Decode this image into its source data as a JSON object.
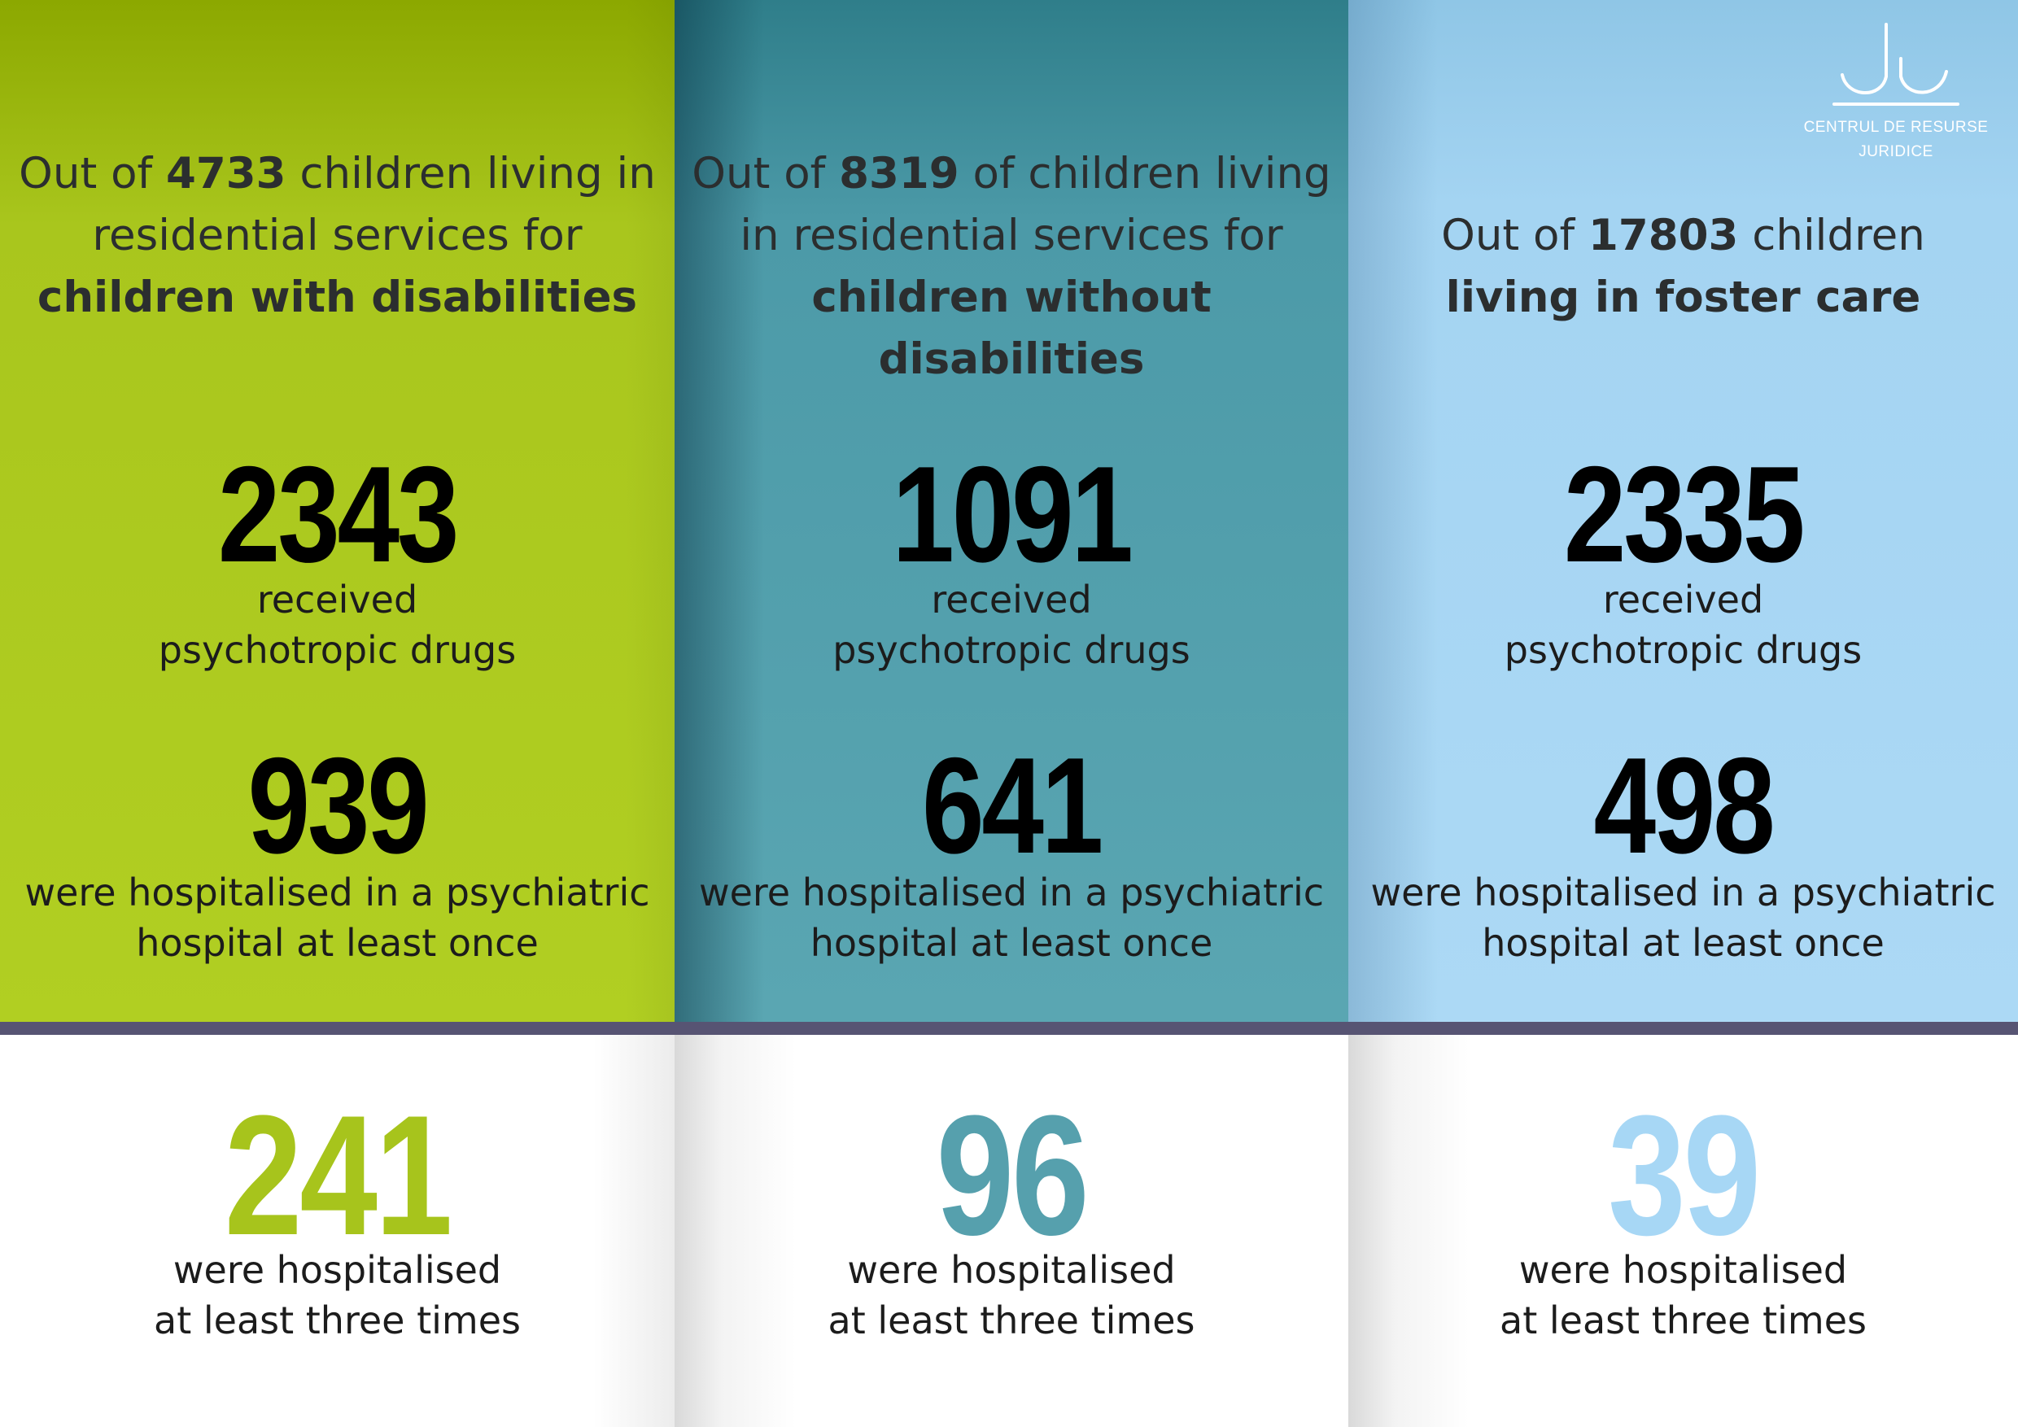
{
  "columns": [
    {
      "heading": {
        "pre": "Out of ",
        "count": "4733",
        "mid": " children living in residential services for ",
        "bold": "children with disabilities"
      },
      "drugs": {
        "value": "2343",
        "label_line1": "received",
        "label_line2": "psychotropic drugs"
      },
      "hospital_once": {
        "value": "939",
        "label_line1": "were hospitalised in a psychiatric",
        "label_line2": "hospital at least once"
      },
      "hospital_three": {
        "value": "241",
        "label_line1": "were hospitalised",
        "label_line2": "at least three times"
      },
      "accent_color": "#a7c41c"
    },
    {
      "heading": {
        "pre": "Out of ",
        "count": "8319",
        "mid": " of children living in residential services for ",
        "bold": "children without disabilities"
      },
      "drugs": {
        "value": "1091",
        "label_line1": "received",
        "label_line2": "psychotropic drugs"
      },
      "hospital_once": {
        "value": "641",
        "label_line1": "were hospitalised in a psychiatric",
        "label_line2": "hospital at least once"
      },
      "hospital_three": {
        "value": "96",
        "label_line1": "were hospitalised",
        "label_line2": "at least three times"
      },
      "accent_color": "#56a0ad"
    },
    {
      "heading": {
        "pre": "Out of ",
        "count": "17803",
        "mid": " children ",
        "bold": "living in foster care"
      },
      "drugs": {
        "value": "2335",
        "label_line1": "received",
        "label_line2": "psychotropic drugs"
      },
      "hospital_once": {
        "value": "498",
        "label_line1": "were hospitalised in a psychiatric",
        "label_line2": "hospital at least once"
      },
      "hospital_three": {
        "value": "39",
        "label_line1": "were hospitalised",
        "label_line2": "at least three times"
      },
      "accent_color": "#a7d7f5"
    }
  ],
  "logo": {
    "line1": "CENTRUL DE RESURSE",
    "line2": "JURIDICE",
    "icon": "crj-logo-icon"
  },
  "colors": {
    "band": "#575473",
    "col1_bg": "#b1cf22",
    "col2_bg": "#5aa6b2",
    "col3_bg": "#acd9f5"
  }
}
